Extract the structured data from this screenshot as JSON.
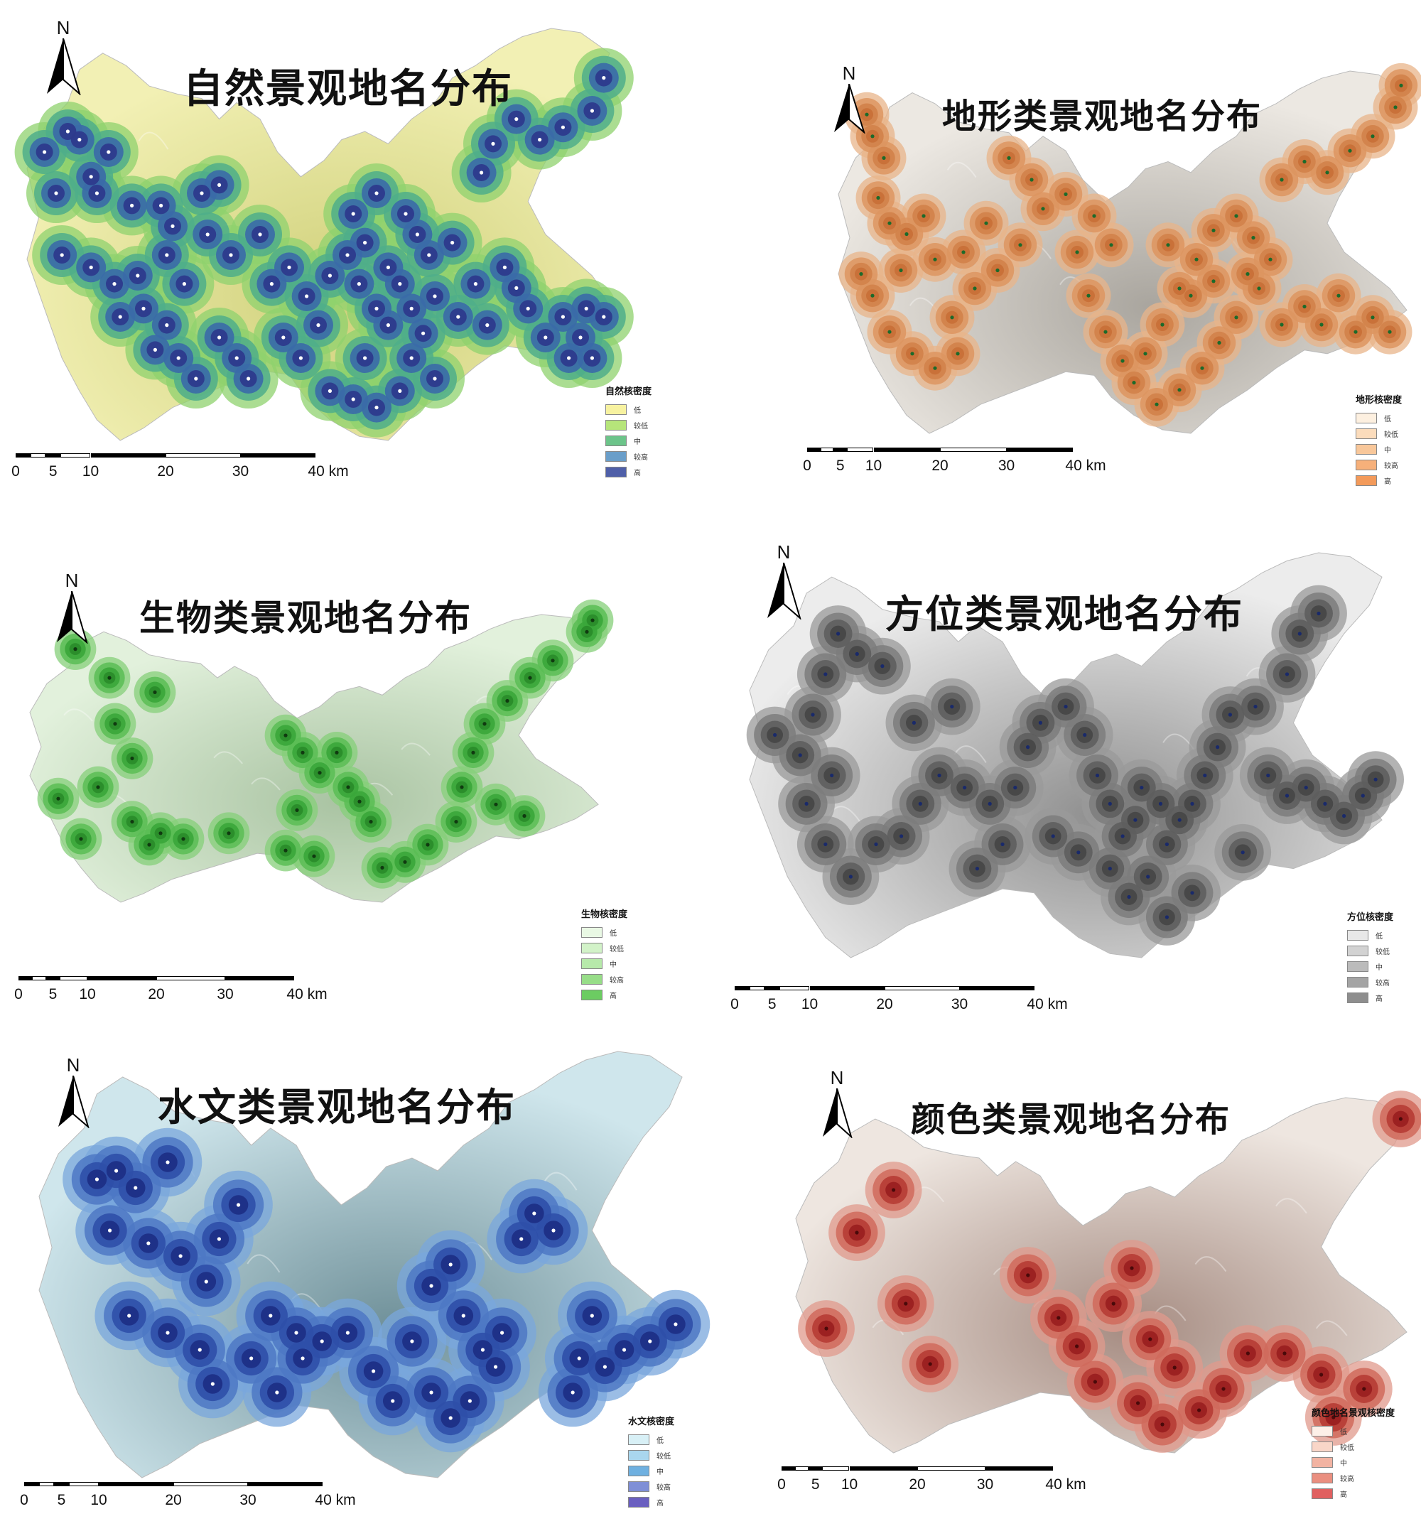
{
  "panels": [
    {
      "id": "natural",
      "title": "自然景观地名分布",
      "north": "N",
      "legend": {
        "title": "自然核密度",
        "items": [
          "低",
          "较低",
          "中",
          "较高",
          "高"
        ],
        "colors": [
          "#f7f2a0",
          "#b6e57a",
          "#6cc48a",
          "#6a9ec9",
          "#4f5fa8"
        ]
      },
      "scale": {
        "ticks": [
          "0",
          "5",
          "10",
          "20",
          "30",
          "40 km"
        ]
      },
      "style": {
        "base_light": "#f2f0b4",
        "base_dark": "#cfd07a",
        "halo_outer": "#8fd16e",
        "halo_mid": "#4fae8a",
        "halo_inner": "#3a6aa8",
        "core": "#2d3a8c",
        "dot": "#ffffff"
      }
    },
    {
      "id": "terrain",
      "title": "地形类景观地名分布",
      "north": "N",
      "legend": {
        "title": "地形核密度",
        "items": [
          "低",
          "较低",
          "中",
          "较高",
          "高"
        ],
        "colors": [
          "#fdf0e0",
          "#fbdcbc",
          "#f8c79a",
          "#f6b07a",
          "#f39a5a"
        ]
      },
      "scale": {
        "ticks": [
          "0",
          "5",
          "10",
          "20",
          "30",
          "40 km"
        ]
      },
      "style": {
        "base_light": "#ece8e2",
        "base_dark": "#a9a59e",
        "halo_outer": "#e8b48a",
        "halo_mid": "#dd9560",
        "halo_inner": "#d2824a",
        "core": "#c87038",
        "dot": "#1d6a2a"
      }
    },
    {
      "id": "biology",
      "title": "生物类景观地名分布",
      "north": "N",
      "legend": {
        "title": "生物核密度",
        "items": [
          "低",
          "较低",
          "中",
          "较高",
          "高"
        ],
        "colors": [
          "#e9f8e4",
          "#d2f2c8",
          "#b7e9aa",
          "#97dd88",
          "#6ccc62"
        ]
      },
      "scale": {
        "ticks": [
          "0",
          "5",
          "10",
          "20",
          "30",
          "40 km"
        ]
      },
      "style": {
        "base_light": "#e2f1dc",
        "base_dark": "#a9c3a2",
        "halo_outer": "#86cf7a",
        "halo_mid": "#5bbd55",
        "halo_inner": "#3aa63a",
        "core": "#2a8c2a",
        "dot": "#103a10"
      }
    },
    {
      "id": "direction",
      "title": "方位类景观地名分布",
      "north": "N",
      "legend": {
        "title": "方位核密度",
        "items": [
          "低",
          "较低",
          "中",
          "较高",
          "高"
        ],
        "colors": [
          "#e8e8e8",
          "#d2d2d2",
          "#bbbbbb",
          "#a4a4a4",
          "#8e8e8e"
        ]
      },
      "scale": {
        "ticks": [
          "0",
          "5",
          "10",
          "20",
          "30",
          "40 km"
        ]
      },
      "style": {
        "base_light": "#ececec",
        "base_dark": "#8f8f8f",
        "halo_outer": "#9a9a9a",
        "halo_mid": "#7d7d7d",
        "halo_inner": "#5e5e5e",
        "core": "#474747",
        "dot": "#1a2a6a"
      }
    },
    {
      "id": "hydrology",
      "title": "水文类景观地名分布",
      "north": "N",
      "legend": {
        "title": "水文核密度",
        "items": [
          "低",
          "较低",
          "中",
          "较高",
          "高"
        ],
        "colors": [
          "#d8f0f6",
          "#a9d6ee",
          "#6fb0e0",
          "#7f8fd6",
          "#6a5fc0"
        ]
      },
      "scale": {
        "ticks": [
          "0",
          "5",
          "10",
          "20",
          "30",
          "40 km"
        ]
      },
      "style": {
        "base_light": "#cfe6ec",
        "base_dark": "#6f9099",
        "halo_outer": "#7aa7dc",
        "halo_mid": "#4d78c4",
        "halo_inner": "#2f4fa8",
        "core": "#1e2f86",
        "dot": "#ffffff"
      }
    },
    {
      "id": "color",
      "title": "颜色类景观地名分布",
      "north": "N",
      "legend": {
        "title": "颜色地名景观核密度",
        "items": [
          "低",
          "较低",
          "中",
          "较高",
          "高"
        ],
        "colors": [
          "#fdf0e8",
          "#f9d6c8",
          "#f2b3a2",
          "#ea8f80",
          "#e06060"
        ]
      },
      "scale": {
        "ticks": [
          "0",
          "5",
          "10",
          "20",
          "30",
          "40 km"
        ]
      },
      "style": {
        "base_light": "#eee6e0",
        "base_dark": "#a68c82",
        "halo_outer": "#e09a8c",
        "halo_mid": "#d06a5c",
        "halo_inner": "#b63c34",
        "core": "#9a2020",
        "dot": "#4a0a0a"
      }
    }
  ],
  "points": {
    "natural": [
      [
        0.07,
        0.25
      ],
      [
        0.09,
        0.27
      ],
      [
        0.14,
        0.3
      ],
      [
        0.11,
        0.36
      ],
      [
        0.12,
        0.4
      ],
      [
        0.18,
        0.43
      ],
      [
        0.23,
        0.43
      ],
      [
        0.25,
        0.48
      ],
      [
        0.3,
        0.4
      ],
      [
        0.33,
        0.38
      ],
      [
        0.31,
        0.5
      ],
      [
        0.35,
        0.55
      ],
      [
        0.06,
        0.55
      ],
      [
        0.11,
        0.58
      ],
      [
        0.15,
        0.62
      ],
      [
        0.19,
        0.6
      ],
      [
        0.16,
        0.7
      ],
      [
        0.2,
        0.68
      ],
      [
        0.24,
        0.72
      ],
      [
        0.22,
        0.78
      ],
      [
        0.26,
        0.8
      ],
      [
        0.29,
        0.85
      ],
      [
        0.33,
        0.75
      ],
      [
        0.36,
        0.8
      ],
      [
        0.38,
        0.85
      ],
      [
        0.42,
        0.62
      ],
      [
        0.45,
        0.58
      ],
      [
        0.48,
        0.65
      ],
      [
        0.5,
        0.72
      ],
      [
        0.44,
        0.75
      ],
      [
        0.47,
        0.8
      ],
      [
        0.52,
        0.6
      ],
      [
        0.55,
        0.55
      ],
      [
        0.57,
        0.62
      ],
      [
        0.6,
        0.68
      ],
      [
        0.64,
        0.62
      ],
      [
        0.62,
        0.72
      ],
      [
        0.66,
        0.8
      ],
      [
        0.7,
        0.85
      ],
      [
        0.56,
        0.45
      ],
      [
        0.6,
        0.4
      ],
      [
        0.65,
        0.45
      ],
      [
        0.67,
        0.5
      ],
      [
        0.69,
        0.55
      ],
      [
        0.73,
        0.52
      ],
      [
        0.77,
        0.62
      ],
      [
        0.79,
        0.72
      ],
      [
        0.82,
        0.58
      ],
      [
        0.84,
        0.63
      ],
      [
        0.86,
        0.68
      ],
      [
        0.89,
        0.75
      ],
      [
        0.92,
        0.7
      ],
      [
        0.95,
        0.75
      ],
      [
        0.97,
        0.8
      ],
      [
        0.93,
        0.8
      ],
      [
        0.96,
        0.68
      ],
      [
        0.99,
        0.7
      ],
      [
        0.78,
        0.35
      ],
      [
        0.8,
        0.28
      ],
      [
        0.84,
        0.22
      ],
      [
        0.88,
        0.27
      ],
      [
        0.92,
        0.24
      ],
      [
        0.97,
        0.2
      ],
      [
        0.99,
        0.12
      ],
      [
        0.03,
        0.3
      ],
      [
        0.05,
        0.4
      ],
      [
        0.58,
        0.52
      ],
      [
        0.62,
        0.58
      ],
      [
        0.66,
        0.68
      ],
      [
        0.68,
        0.74
      ],
      [
        0.52,
        0.88
      ],
      [
        0.56,
        0.9
      ],
      [
        0.6,
        0.92
      ],
      [
        0.64,
        0.88
      ],
      [
        0.58,
        0.8
      ],
      [
        0.7,
        0.65
      ],
      [
        0.74,
        0.7
      ],
      [
        0.4,
        0.5
      ],
      [
        0.27,
        0.62
      ],
      [
        0.24,
        0.55
      ]
    ],
    "terrain": [
      [
        0.05,
        0.12
      ],
      [
        0.06,
        0.18
      ],
      [
        0.08,
        0.24
      ],
      [
        0.07,
        0.35
      ],
      [
        0.09,
        0.42
      ],
      [
        0.12,
        0.45
      ],
      [
        0.15,
        0.4
      ],
      [
        0.17,
        0.52
      ],
      [
        0.11,
        0.55
      ],
      [
        0.04,
        0.56
      ],
      [
        0.06,
        0.62
      ],
      [
        0.09,
        0.72
      ],
      [
        0.13,
        0.78
      ],
      [
        0.17,
        0.82
      ],
      [
        0.21,
        0.78
      ],
      [
        0.2,
        0.68
      ],
      [
        0.24,
        0.6
      ],
      [
        0.28,
        0.55
      ],
      [
        0.32,
        0.48
      ],
      [
        0.36,
        0.38
      ],
      [
        0.4,
        0.34
      ],
      [
        0.42,
        0.5
      ],
      [
        0.44,
        0.62
      ],
      [
        0.47,
        0.72
      ],
      [
        0.5,
        0.8
      ],
      [
        0.54,
        0.78
      ],
      [
        0.57,
        0.7
      ],
      [
        0.6,
        0.6
      ],
      [
        0.63,
        0.52
      ],
      [
        0.66,
        0.44
      ],
      [
        0.7,
        0.4
      ],
      [
        0.73,
        0.46
      ],
      [
        0.76,
        0.52
      ],
      [
        0.74,
        0.6
      ],
      [
        0.7,
        0.68
      ],
      [
        0.67,
        0.75
      ],
      [
        0.64,
        0.82
      ],
      [
        0.6,
        0.88
      ],
      [
        0.56,
        0.92
      ],
      [
        0.52,
        0.86
      ],
      [
        0.78,
        0.7
      ],
      [
        0.82,
        0.65
      ],
      [
        0.85,
        0.7
      ],
      [
        0.88,
        0.62
      ],
      [
        0.91,
        0.72
      ],
      [
        0.94,
        0.68
      ],
      [
        0.97,
        0.72
      ],
      [
        0.78,
        0.3
      ],
      [
        0.82,
        0.25
      ],
      [
        0.86,
        0.28
      ],
      [
        0.9,
        0.22
      ],
      [
        0.94,
        0.18
      ],
      [
        0.98,
        0.1
      ],
      [
        0.99,
        0.04
      ],
      [
        0.3,
        0.24
      ],
      [
        0.34,
        0.3
      ],
      [
        0.26,
        0.42
      ],
      [
        0.22,
        0.5
      ],
      [
        0.45,
        0.4
      ],
      [
        0.48,
        0.48
      ],
      [
        0.58,
        0.48
      ],
      [
        0.62,
        0.62
      ],
      [
        0.66,
        0.58
      ],
      [
        0.72,
        0.56
      ]
    ],
    "biology": [
      [
        0.08,
        0.12
      ],
      [
        0.14,
        0.22
      ],
      [
        0.22,
        0.27
      ],
      [
        0.15,
        0.38
      ],
      [
        0.18,
        0.5
      ],
      [
        0.12,
        0.6
      ],
      [
        0.05,
        0.64
      ],
      [
        0.09,
        0.78
      ],
      [
        0.18,
        0.72
      ],
      [
        0.21,
        0.8
      ],
      [
        0.23,
        0.76
      ],
      [
        0.27,
        0.78
      ],
      [
        0.35,
        0.76
      ],
      [
        0.45,
        0.42
      ],
      [
        0.48,
        0.48
      ],
      [
        0.51,
        0.55
      ],
      [
        0.54,
        0.48
      ],
      [
        0.56,
        0.6
      ],
      [
        0.58,
        0.65
      ],
      [
        0.6,
        0.72
      ],
      [
        0.47,
        0.68
      ],
      [
        0.45,
        0.82
      ],
      [
        0.5,
        0.84
      ],
      [
        0.62,
        0.88
      ],
      [
        0.66,
        0.86
      ],
      [
        0.7,
        0.8
      ],
      [
        0.75,
        0.72
      ],
      [
        0.76,
        0.6
      ],
      [
        0.78,
        0.48
      ],
      [
        0.8,
        0.38
      ],
      [
        0.84,
        0.3
      ],
      [
        0.88,
        0.22
      ],
      [
        0.92,
        0.16
      ],
      [
        0.98,
        0.06
      ],
      [
        0.99,
        0.02
      ],
      [
        0.82,
        0.66
      ],
      [
        0.87,
        0.7
      ]
    ],
    "direction": [
      [
        0.04,
        0.45
      ],
      [
        0.08,
        0.5
      ],
      [
        0.1,
        0.4
      ],
      [
        0.12,
        0.3
      ],
      [
        0.14,
        0.2
      ],
      [
        0.17,
        0.25
      ],
      [
        0.21,
        0.28
      ],
      [
        0.26,
        0.42
      ],
      [
        0.32,
        0.38
      ],
      [
        0.3,
        0.55
      ],
      [
        0.27,
        0.62
      ],
      [
        0.24,
        0.7
      ],
      [
        0.2,
        0.72
      ],
      [
        0.16,
        0.8
      ],
      [
        0.12,
        0.72
      ],
      [
        0.09,
        0.62
      ],
      [
        0.13,
        0.55
      ],
      [
        0.34,
        0.58
      ],
      [
        0.38,
        0.62
      ],
      [
        0.42,
        0.58
      ],
      [
        0.44,
        0.48
      ],
      [
        0.46,
        0.42
      ],
      [
        0.5,
        0.38
      ],
      [
        0.53,
        0.45
      ],
      [
        0.55,
        0.55
      ],
      [
        0.57,
        0.62
      ],
      [
        0.59,
        0.7
      ],
      [
        0.57,
        0.78
      ],
      [
        0.6,
        0.85
      ],
      [
        0.63,
        0.8
      ],
      [
        0.66,
        0.72
      ],
      [
        0.68,
        0.66
      ],
      [
        0.7,
        0.62
      ],
      [
        0.72,
        0.55
      ],
      [
        0.74,
        0.48
      ],
      [
        0.76,
        0.4
      ],
      [
        0.8,
        0.38
      ],
      [
        0.82,
        0.55
      ],
      [
        0.85,
        0.6
      ],
      [
        0.88,
        0.58
      ],
      [
        0.91,
        0.62
      ],
      [
        0.94,
        0.65
      ],
      [
        0.97,
        0.6
      ],
      [
        0.99,
        0.56
      ],
      [
        0.85,
        0.3
      ],
      [
        0.87,
        0.2
      ],
      [
        0.9,
        0.15
      ],
      [
        0.62,
        0.58
      ],
      [
        0.65,
        0.62
      ],
      [
        0.61,
        0.66
      ],
      [
        0.48,
        0.7
      ],
      [
        0.52,
        0.74
      ],
      [
        0.4,
        0.72
      ],
      [
        0.36,
        0.78
      ],
      [
        0.78,
        0.74
      ],
      [
        0.66,
        0.9
      ],
      [
        0.7,
        0.84
      ]
    ],
    "hydrology": [
      [
        0.09,
        0.3
      ],
      [
        0.12,
        0.28
      ],
      [
        0.15,
        0.32
      ],
      [
        0.2,
        0.26
      ],
      [
        0.11,
        0.42
      ],
      [
        0.17,
        0.45
      ],
      [
        0.22,
        0.48
      ],
      [
        0.26,
        0.54
      ],
      [
        0.28,
        0.44
      ],
      [
        0.31,
        0.36
      ],
      [
        0.14,
        0.62
      ],
      [
        0.2,
        0.66
      ],
      [
        0.25,
        0.7
      ],
      [
        0.27,
        0.78
      ],
      [
        0.33,
        0.72
      ],
      [
        0.37,
        0.8
      ],
      [
        0.41,
        0.72
      ],
      [
        0.44,
        0.68
      ],
      [
        0.48,
        0.66
      ],
      [
        0.52,
        0.75
      ],
      [
        0.55,
        0.82
      ],
      [
        0.58,
        0.68
      ],
      [
        0.61,
        0.55
      ],
      [
        0.64,
        0.5
      ],
      [
        0.66,
        0.62
      ],
      [
        0.69,
        0.7
      ],
      [
        0.71,
        0.74
      ],
      [
        0.67,
        0.82
      ],
      [
        0.64,
        0.86
      ],
      [
        0.61,
        0.8
      ],
      [
        0.72,
        0.66
      ],
      [
        0.75,
        0.44
      ],
      [
        0.77,
        0.38
      ],
      [
        0.8,
        0.42
      ],
      [
        0.84,
        0.72
      ],
      [
        0.88,
        0.74
      ],
      [
        0.91,
        0.7
      ],
      [
        0.95,
        0.68
      ],
      [
        0.99,
        0.64
      ],
      [
        0.83,
        0.8
      ],
      [
        0.86,
        0.62
      ],
      [
        0.36,
        0.62
      ],
      [
        0.4,
        0.66
      ]
    ],
    "color": [
      [
        0.1,
        0.38
      ],
      [
        0.16,
        0.26
      ],
      [
        0.05,
        0.65
      ],
      [
        0.18,
        0.58
      ],
      [
        0.22,
        0.75
      ],
      [
        0.38,
        0.5
      ],
      [
        0.43,
        0.62
      ],
      [
        0.46,
        0.7
      ],
      [
        0.49,
        0.8
      ],
      [
        0.52,
        0.58
      ],
      [
        0.55,
        0.48
      ],
      [
        0.58,
        0.68
      ],
      [
        0.62,
        0.76
      ],
      [
        0.66,
        0.88
      ],
      [
        0.7,
        0.82
      ],
      [
        0.74,
        0.72
      ],
      [
        0.8,
        0.72
      ],
      [
        0.86,
        0.78
      ],
      [
        0.93,
        0.82
      ],
      [
        0.99,
        0.06
      ],
      [
        0.88,
        0.9
      ],
      [
        0.56,
        0.86
      ],
      [
        0.6,
        0.92
      ]
    ]
  }
}
